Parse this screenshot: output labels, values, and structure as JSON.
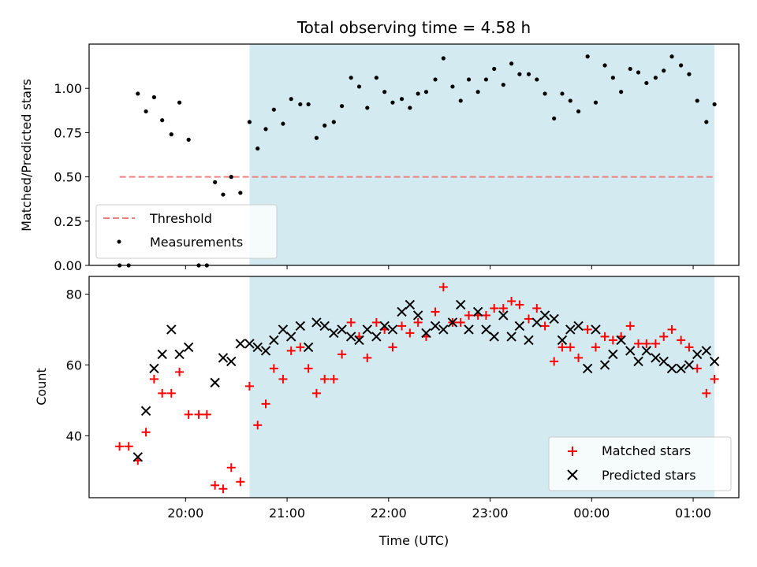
{
  "chart_data": [
    {
      "type": "scatter",
      "title": "Total observing time = 4.58 h",
      "xlabel": "",
      "ylabel": "Matched/Predicted stars",
      "ylim": [
        0.0,
        1.25
      ],
      "yticks": [
        0.0,
        0.25,
        0.5,
        0.75,
        1.0
      ],
      "ytick_labels": [
        "0.00",
        "0.25",
        "0.50",
        "0.75",
        "1.00"
      ],
      "xlim_hours": [
        19.05,
        25.45
      ],
      "shaded_span_hours": [
        20.63,
        25.21
      ],
      "shaded_color": "#d3eaf1",
      "legend_position": "lower-left",
      "threshold": {
        "name": "Threshold",
        "y": 0.5,
        "x_start_hours": 19.35,
        "x_end_hours": 25.21,
        "color": "#f08080",
        "style": "dashed"
      },
      "measurements": {
        "name": "Measurements",
        "color": "#000000",
        "x_hours": [
          19.35,
          19.44,
          19.53,
          19.61,
          19.69,
          19.77,
          19.86,
          19.94,
          20.03,
          20.13,
          20.21,
          20.29,
          20.37,
          20.45,
          20.54,
          20.63,
          20.71,
          20.79,
          20.87,
          20.96,
          21.04,
          21.13,
          21.21,
          21.29,
          21.37,
          21.46,
          21.54,
          21.63,
          21.71,
          21.79,
          21.88,
          21.96,
          22.04,
          22.13,
          22.21,
          22.29,
          22.37,
          22.46,
          22.54,
          22.63,
          22.71,
          22.79,
          22.88,
          22.96,
          23.04,
          23.13,
          23.21,
          23.29,
          23.38,
          23.46,
          23.54,
          23.63,
          23.71,
          23.79,
          23.87,
          23.96,
          24.04,
          24.13,
          24.21,
          24.29,
          24.38,
          24.46,
          24.54,
          24.63,
          24.71,
          24.79,
          24.88,
          24.96,
          25.04,
          25.13,
          25.21
        ],
        "y": [
          0.0,
          0.0,
          0.97,
          0.87,
          0.95,
          0.82,
          0.74,
          0.92,
          0.71,
          0.0,
          0.0,
          0.47,
          0.4,
          0.5,
          0.41,
          0.81,
          0.66,
          0.77,
          0.88,
          0.8,
          0.94,
          0.91,
          0.91,
          0.72,
          0.79,
          0.81,
          0.9,
          1.06,
          1.01,
          0.89,
          1.06,
          0.98,
          0.92,
          0.94,
          0.89,
          0.97,
          0.98,
          1.05,
          1.17,
          1.01,
          0.93,
          1.05,
          0.98,
          1.05,
          1.11,
          1.02,
          1.14,
          1.08,
          1.08,
          1.05,
          0.97,
          0.83,
          0.97,
          0.93,
          0.87,
          1.18,
          0.92,
          1.13,
          1.06,
          0.98,
          1.11,
          1.09,
          1.03,
          1.06,
          1.1,
          1.18,
          1.13,
          1.08,
          0.93,
          0.81,
          0.91
        ]
      }
    },
    {
      "type": "scatter",
      "title": "",
      "xlabel": "Time (UTC)",
      "ylabel": "Count",
      "ylim": [
        22.5,
        85
      ],
      "yticks": [
        40,
        60,
        80
      ],
      "ytick_labels": [
        "40",
        "60",
        "80"
      ],
      "xlim_hours": [
        19.05,
        25.45
      ],
      "xticks_hours": [
        20,
        21,
        22,
        23,
        24,
        25
      ],
      "xtick_labels": [
        "20:00",
        "21:00",
        "22:00",
        "23:00",
        "00:00",
        "01:00"
      ],
      "shaded_span_hours": [
        20.63,
        25.21
      ],
      "shaded_color": "#d3eaf1",
      "legend_position": "lower-right",
      "series": [
        {
          "name": "Matched stars",
          "marker": "+",
          "color": "#ff0000",
          "x_hours": [
            19.35,
            19.44,
            19.53,
            19.61,
            19.69,
            19.77,
            19.86,
            19.94,
            20.03,
            20.13,
            20.21,
            20.29,
            20.37,
            20.45,
            20.54,
            20.63,
            20.71,
            20.79,
            20.87,
            20.96,
            21.04,
            21.13,
            21.21,
            21.29,
            21.37,
            21.46,
            21.54,
            21.63,
            21.71,
            21.79,
            21.88,
            21.96,
            22.04,
            22.13,
            22.21,
            22.29,
            22.37,
            22.46,
            22.54,
            22.63,
            22.71,
            22.79,
            22.88,
            22.96,
            23.04,
            23.13,
            23.21,
            23.29,
            23.38,
            23.46,
            23.54,
            23.63,
            23.71,
            23.79,
            23.87,
            23.96,
            24.04,
            24.13,
            24.21,
            24.29,
            24.38,
            24.46,
            24.54,
            24.63,
            24.71,
            24.79,
            24.88,
            24.96,
            25.04,
            25.13,
            25.21
          ],
          "y": [
            37,
            37,
            33,
            41,
            56,
            52,
            52,
            58,
            46,
            46,
            46,
            26,
            25,
            31,
            27,
            54,
            43,
            49,
            59,
            56,
            64,
            65,
            59,
            52,
            56,
            56,
            63,
            72,
            68,
            62,
            72,
            70,
            65,
            71,
            69,
            72,
            68,
            75,
            82,
            72,
            72,
            74,
            74,
            74,
            76,
            76,
            78,
            77,
            73,
            76,
            71,
            61,
            65,
            65,
            62,
            70,
            65,
            68,
            67,
            68,
            71,
            66,
            66,
            66,
            68,
            70,
            67,
            65,
            59,
            52,
            56
          ]
        },
        {
          "name": "Predicted stars",
          "marker": "x",
          "color": "#000000",
          "x_hours": [
            19.53,
            19.61,
            19.69,
            19.77,
            19.86,
            19.94,
            20.03,
            20.29,
            20.37,
            20.45,
            20.54,
            20.63,
            20.71,
            20.79,
            20.87,
            20.96,
            21.04,
            21.13,
            21.21,
            21.29,
            21.37,
            21.46,
            21.54,
            21.63,
            21.71,
            21.79,
            21.88,
            21.96,
            22.04,
            22.13,
            22.21,
            22.29,
            22.37,
            22.46,
            22.54,
            22.63,
            22.71,
            22.79,
            22.88,
            22.96,
            23.04,
            23.13,
            23.21,
            23.29,
            23.38,
            23.46,
            23.54,
            23.63,
            23.71,
            23.79,
            23.87,
            23.96,
            24.04,
            24.13,
            24.21,
            24.29,
            24.38,
            24.46,
            24.54,
            24.63,
            24.71,
            24.79,
            24.88,
            24.96,
            25.04,
            25.13,
            25.21
          ],
          "y": [
            34,
            47,
            59,
            63,
            70,
            63,
            65,
            55,
            62,
            61,
            66,
            66,
            65,
            64,
            67,
            70,
            68,
            71,
            65,
            72,
            71,
            69,
            70,
            68,
            67,
            70,
            68,
            71,
            70,
            75,
            77,
            74,
            69,
            71,
            70,
            72,
            77,
            70,
            75,
            70,
            68,
            74,
            68,
            71,
            67,
            72,
            74,
            73,
            67,
            70,
            71,
            59,
            70,
            60,
            63,
            67,
            64,
            61,
            64,
            62,
            61,
            59,
            59,
            60,
            63,
            64,
            61
          ]
        }
      ]
    }
  ]
}
